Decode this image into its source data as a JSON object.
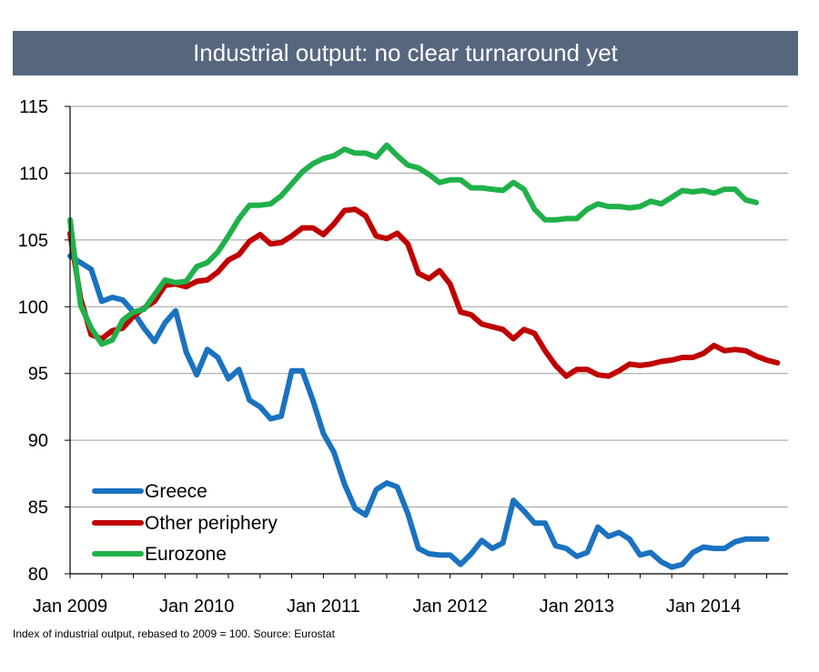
{
  "title": "Industrial output: no clear turnaround yet",
  "source_note": "Index of industrial output, rebased to 2009 = 100. Source: Eurostat",
  "colors": {
    "title_bg": "#56667f",
    "greece": "#1a72c0",
    "other_periphery": "#c00000",
    "eurozone": "#20b14a",
    "grid": "#9e9e9e",
    "axis": "#000000"
  },
  "chart_data": {
    "type": "line",
    "title": "Industrial output: no clear turnaround yet",
    "xlabel": "",
    "ylabel": "",
    "ylim": [
      80,
      115
    ],
    "yticks": [
      80,
      85,
      90,
      95,
      100,
      105,
      110,
      115
    ],
    "x_start_year": 2009,
    "x_interval": "monthly",
    "xticks": [
      {
        "month_index": 0,
        "label": "Jan 2009"
      },
      {
        "month_index": 12,
        "label": "Jan 2010"
      },
      {
        "month_index": 24,
        "label": "Jan 2011"
      },
      {
        "month_index": 36,
        "label": "Jan 2012"
      },
      {
        "month_index": 48,
        "label": "Jan 2013"
      },
      {
        "month_index": 60,
        "label": "Jan 2014"
      }
    ],
    "grid": true,
    "legend_position": "bottom-left",
    "series": [
      {
        "name": "Greece",
        "values": [
          103.8,
          103.3,
          102.8,
          100.4,
          100.7,
          100.5,
          99.6,
          98.4,
          97.4,
          98.8,
          99.7,
          96.6,
          94.9,
          96.8,
          96.2,
          94.6,
          95.3,
          93.0,
          92.5,
          91.6,
          91.8,
          95.2,
          95.2,
          93.0,
          90.5,
          89.1,
          86.7,
          84.9,
          84.4,
          86.3,
          86.8,
          86.5,
          84.5,
          81.9,
          81.5,
          81.4,
          81.4,
          80.7,
          81.5,
          82.5,
          81.9,
          82.3,
          85.5,
          84.7,
          83.8,
          83.8,
          82.1,
          81.9,
          81.3,
          81.6,
          83.5,
          82.8,
          83.1,
          82.6,
          81.4,
          81.6,
          80.9,
          80.5,
          80.7,
          81.6,
          82.0,
          81.9,
          81.9,
          82.4,
          82.6,
          82.6,
          82.6
        ]
      },
      {
        "name": "Other periphery",
        "values": [
          105.5,
          100.6,
          97.9,
          97.6,
          98.2,
          98.4,
          99.3,
          99.9,
          100.4,
          101.6,
          101.7,
          101.5,
          101.9,
          102.0,
          102.6,
          103.5,
          103.9,
          104.9,
          105.4,
          104.7,
          104.8,
          105.3,
          105.9,
          105.9,
          105.4,
          106.2,
          107.2,
          107.3,
          106.8,
          105.3,
          105.1,
          105.5,
          104.7,
          102.5,
          102.1,
          102.7,
          101.7,
          99.6,
          99.4,
          98.7,
          98.5,
          98.3,
          97.6,
          98.3,
          98.0,
          96.7,
          95.6,
          94.8,
          95.3,
          95.3,
          94.9,
          94.8,
          95.2,
          95.7,
          95.6,
          95.7,
          95.9,
          96.0,
          96.2,
          96.2,
          96.5,
          97.1,
          96.7,
          96.8,
          96.7,
          96.3,
          96.0,
          95.8
        ]
      },
      {
        "name": "Eurozone",
        "values": [
          106.5,
          100.1,
          98.4,
          97.2,
          97.5,
          99.0,
          99.6,
          99.8,
          100.9,
          102.0,
          101.8,
          101.9,
          103.0,
          103.3,
          104.1,
          105.3,
          106.6,
          107.6,
          107.6,
          107.7,
          108.3,
          109.2,
          110.1,
          110.7,
          111.1,
          111.3,
          111.8,
          111.5,
          111.5,
          111.2,
          112.1,
          111.3,
          110.6,
          110.4,
          109.9,
          109.3,
          109.5,
          109.5,
          108.9,
          108.9,
          108.8,
          108.7,
          109.3,
          108.8,
          107.3,
          106.5,
          106.5,
          106.6,
          106.6,
          107.3,
          107.7,
          107.5,
          107.5,
          107.4,
          107.5,
          107.9,
          107.7,
          108.2,
          108.7,
          108.6,
          108.7,
          108.5,
          108.8,
          108.8,
          108.0,
          107.8
        ]
      }
    ]
  }
}
